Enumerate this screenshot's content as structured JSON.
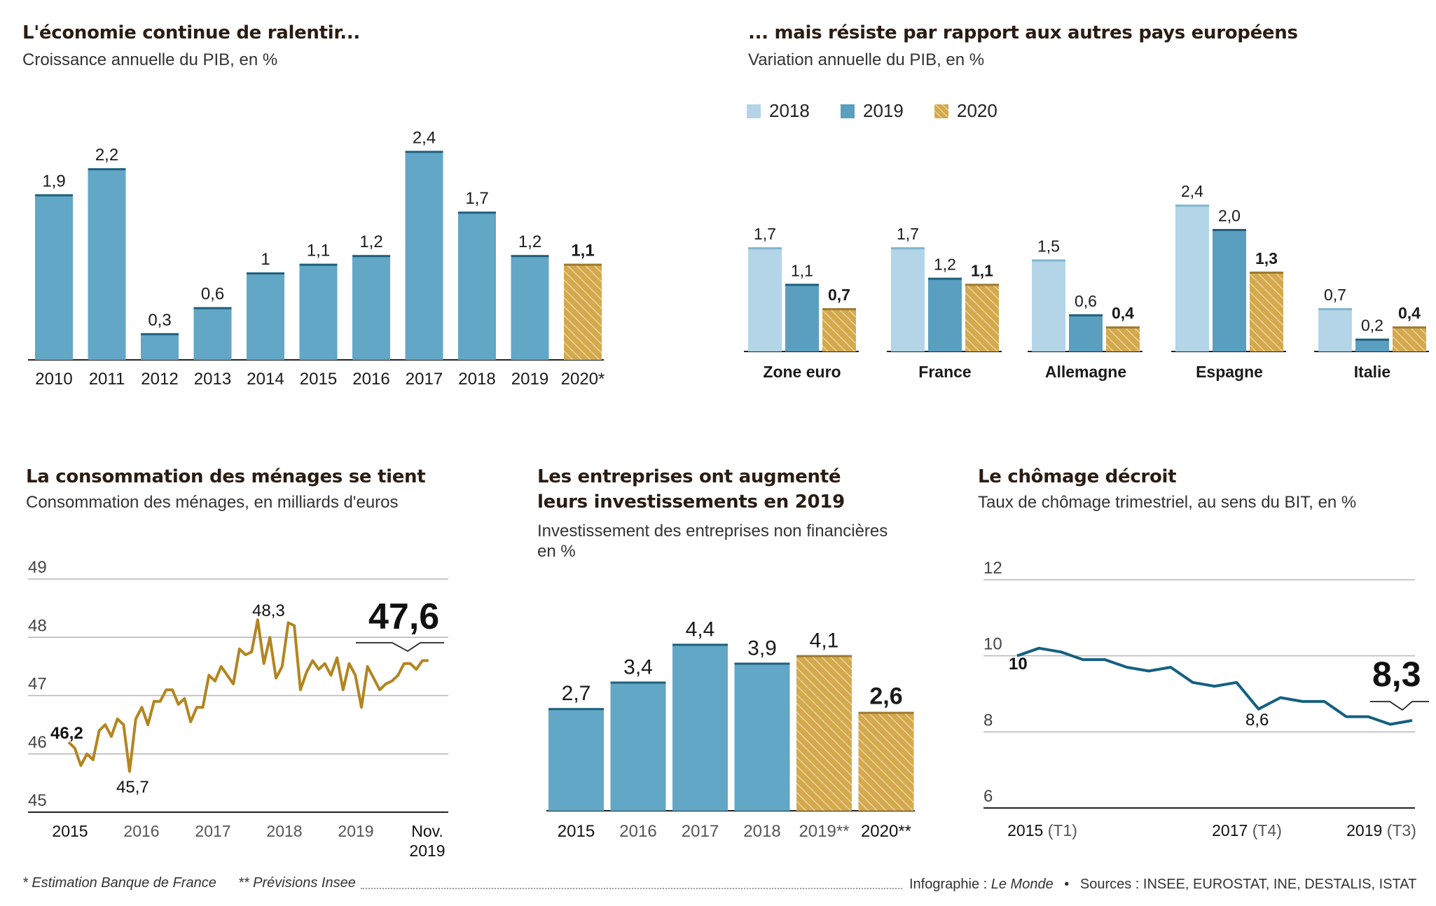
{
  "colors": {
    "bar": "#62a7c6",
    "bar_light": "#b3d5e7",
    "bar_dark": "#5a9fc0",
    "forecast": "#d4a94c",
    "gold_line": "#b38520",
    "navy_line": "#136082",
    "text": "#1a1a1a",
    "grid": "#b5b5b5"
  },
  "panel1": {
    "title": "L'économie continue de ralentir...",
    "subtitle": "Croissance annuelle du PIB, en %"
  },
  "panel2": {
    "title": "... mais résiste par rapport aux autres pays européens",
    "subtitle": "Variation annuelle du PIB, en %",
    "legend": [
      "2018",
      "2019",
      "2020"
    ]
  },
  "panel3": {
    "title": "La consommation des ménages se tient",
    "subtitle": "Consommation des ménages, en milliards d'euros"
  },
  "panel4": {
    "title_line1": "Les entreprises ont augmenté",
    "title_line2": "leurs investissements en 2019",
    "subtitle_line1": "Investissement des entreprises non financières",
    "subtitle_line2": "en %"
  },
  "panel5": {
    "title": "Le chômage décroit",
    "subtitle": "Taux de chômage trimestriel, au sens du BIT, en %"
  },
  "footer": {
    "left1": "* Estimation Banque de France",
    "left2": "** Prévisions Insee",
    "right_prefix": "Infographie : ",
    "right_italic": "Le Monde",
    "right_sources": "Sources : INSEE, EUROSTAT, INE, DESTALIS, ISTAT"
  },
  "chart_data": [
    {
      "type": "bar",
      "title": "L'économie continue de ralentir...",
      "categories": [
        "2010",
        "2011",
        "2012",
        "2013",
        "2014",
        "2015",
        "2016",
        "2017",
        "2018",
        "2019",
        "2020*"
      ],
      "values": [
        1.9,
        2.2,
        0.3,
        0.6,
        1,
        1.1,
        1.2,
        2.4,
        1.7,
        1.2,
        1.1
      ],
      "labels": [
        "1,9",
        "2,2",
        "0,3",
        "0,6",
        "1",
        "1,1",
        "1,2",
        "2,4",
        "1,7",
        "1,2",
        "1,1"
      ],
      "forecast_index": 10,
      "ylim": [
        0,
        2.4
      ]
    },
    {
      "type": "bar",
      "title": "... mais résiste par rapport aux autres pays européens",
      "categories": [
        "Zone euro",
        "France",
        "Allemagne",
        "Espagne",
        "Italie"
      ],
      "series": [
        {
          "name": "2018",
          "values": [
            1.7,
            1.7,
            1.5,
            2.4,
            0.7
          ],
          "labels": [
            "1,7",
            "1,7",
            "1,5",
            "2,4",
            "0,7"
          ]
        },
        {
          "name": "2019",
          "values": [
            1.1,
            1.2,
            0.6,
            2.0,
            0.2
          ],
          "labels": [
            "1,1",
            "1,2",
            "0,6",
            "2,0",
            "0,2"
          ]
        },
        {
          "name": "2020",
          "values": [
            0.7,
            1.1,
            0.4,
            1.3,
            0.4
          ],
          "labels": [
            "0,7",
            "1,1",
            "0,4",
            "1,3",
            "0,4"
          ]
        }
      ],
      "ylim": [
        0,
        2.4
      ]
    },
    {
      "type": "line",
      "title": "La consommation des ménages se tient",
      "yticks": [
        "49",
        "48",
        "47",
        "46",
        "45"
      ],
      "ylim": [
        45,
        49
      ],
      "xticks": [
        "2015",
        "2016",
        "2017",
        "2018",
        "2019",
        "Nov.|2019"
      ],
      "xlim": [
        2015,
        2019.9
      ],
      "x": [
        2015.0,
        2015.083,
        2015.167,
        2015.25,
        2015.333,
        2015.417,
        2015.5,
        2015.583,
        2015.667,
        2015.75,
        2015.833,
        2015.917,
        2016.0,
        2016.083,
        2016.167,
        2016.25,
        2016.333,
        2016.417,
        2016.5,
        2016.583,
        2016.667,
        2016.75,
        2016.833,
        2016.917,
        2017.0,
        2017.083,
        2017.167,
        2017.25,
        2017.333,
        2017.417,
        2017.5,
        2017.583,
        2017.667,
        2017.75,
        2017.833,
        2017.917,
        2018.0,
        2018.083,
        2018.167,
        2018.25,
        2018.333,
        2018.417,
        2018.5,
        2018.583,
        2018.667,
        2018.75,
        2018.833,
        2018.917,
        2019.0,
        2019.083,
        2019.167,
        2019.25,
        2019.333,
        2019.417,
        2019.5,
        2019.583,
        2019.667,
        2019.75,
        2019.833,
        2019.917
      ],
      "y": [
        46.2,
        46.1,
        45.8,
        46.0,
        45.9,
        46.4,
        46.5,
        46.3,
        46.6,
        46.5,
        45.7,
        46.6,
        46.8,
        46.5,
        46.9,
        46.9,
        47.1,
        47.1,
        46.85,
        46.95,
        46.55,
        46.8,
        46.8,
        47.35,
        47.25,
        47.5,
        47.35,
        47.2,
        47.8,
        47.7,
        47.75,
        48.3,
        47.55,
        48.0,
        47.3,
        47.5,
        48.25,
        48.2,
        47.1,
        47.4,
        47.6,
        47.45,
        47.55,
        47.35,
        47.65,
        47.1,
        47.55,
        47.35,
        46.8,
        47.5,
        47.3,
        47.1,
        47.2,
        47.25,
        47.35,
        47.55,
        47.55,
        47.45,
        47.6,
        47.6
      ],
      "annotations": [
        {
          "label": "46,2"
        },
        {
          "label": "45,7"
        },
        {
          "label": "48,3"
        },
        {
          "label": "47,6"
        }
      ]
    },
    {
      "type": "bar",
      "title": "Les entreprises ont augmenté leurs investissements en 2019",
      "categories": [
        "2015",
        "2016",
        "2017",
        "2018",
        "2019**",
        "2020**"
      ],
      "values": [
        2.7,
        3.4,
        4.4,
        3.9,
        4.1,
        2.6
      ],
      "labels": [
        "2,7",
        "3,4",
        "4,4",
        "3,9",
        "4,1",
        "2,6"
      ],
      "forecast_from_index": 4,
      "ylim": [
        0,
        4.4
      ]
    },
    {
      "type": "line",
      "title": "Le chômage décroit",
      "yticks": [
        "12",
        "10",
        "8",
        "6"
      ],
      "ylim": [
        6,
        12
      ],
      "xticks": [
        {
          "main": "2015",
          "sub": "(T1)"
        },
        {
          "main": "2017",
          "sub": "(T4)"
        },
        {
          "main": "2019",
          "sub": "(T3)"
        }
      ],
      "x": [
        0,
        1,
        2,
        3,
        4,
        5,
        6,
        7,
        8,
        9,
        10,
        11,
        12,
        13,
        14,
        15,
        16,
        17,
        18
      ],
      "y": [
        10.0,
        10.2,
        10.1,
        9.9,
        9.9,
        9.7,
        9.6,
        9.7,
        9.3,
        9.2,
        9.3,
        8.6,
        8.9,
        8.8,
        8.8,
        8.4,
        8.4,
        8.2,
        8.3
      ],
      "annotations": [
        {
          "label": "10"
        },
        {
          "label": "8,6"
        },
        {
          "label": "8,3"
        }
      ]
    }
  ]
}
